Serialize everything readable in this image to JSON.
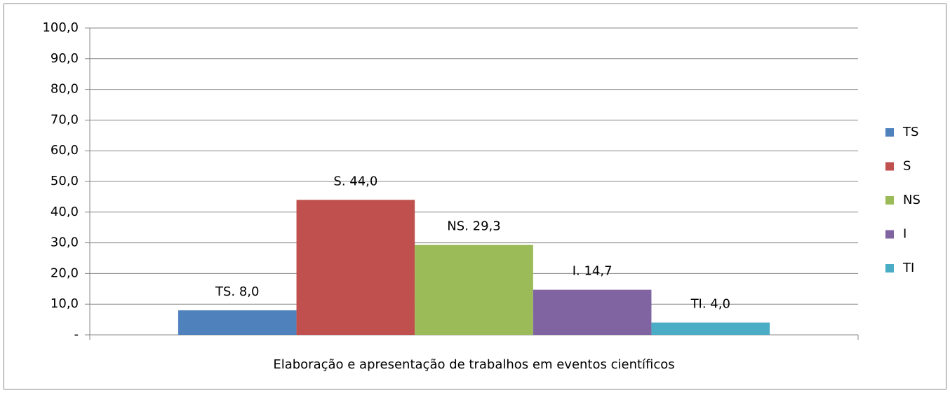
{
  "chart_data": {
    "type": "bar",
    "categories": [
      "Elaboração e apresentação de trabalhos em eventos científicos"
    ],
    "series": [
      {
        "name": "TS",
        "color": "#4f81bd",
        "values": [
          8.0
        ],
        "value_labels": [
          "TS.  8,0"
        ]
      },
      {
        "name": "S",
        "color": "#c0504d",
        "values": [
          44.0
        ],
        "value_labels": [
          "S.  44,0"
        ]
      },
      {
        "name": "NS",
        "color": "#9bbb59",
        "values": [
          29.3
        ],
        "value_labels": [
          "NS.  29,3"
        ]
      },
      {
        "name": "I",
        "color": "#8064a2",
        "values": [
          14.7
        ],
        "value_labels": [
          "I.  14,7"
        ]
      },
      {
        "name": "TI",
        "color": "#4bacc6",
        "values": [
          4.0
        ],
        "value_labels": [
          "TI.  4,0"
        ]
      }
    ],
    "ylim": [
      0,
      100
    ],
    "yticks": [
      {
        "value": 0,
        "label": "-"
      },
      {
        "value": 10,
        "label": "10,0"
      },
      {
        "value": 20,
        "label": "20,0"
      },
      {
        "value": 30,
        "label": "30,0"
      },
      {
        "value": 40,
        "label": "40,0"
      },
      {
        "value": 50,
        "label": "50,0"
      },
      {
        "value": 60,
        "label": "60,0"
      },
      {
        "value": 70,
        "label": "70,0"
      },
      {
        "value": 80,
        "label": "80,0"
      },
      {
        "value": 90,
        "label": "90,0"
      },
      {
        "value": 100,
        "label": "100,0"
      }
    ],
    "grid": true,
    "legend": "right"
  }
}
